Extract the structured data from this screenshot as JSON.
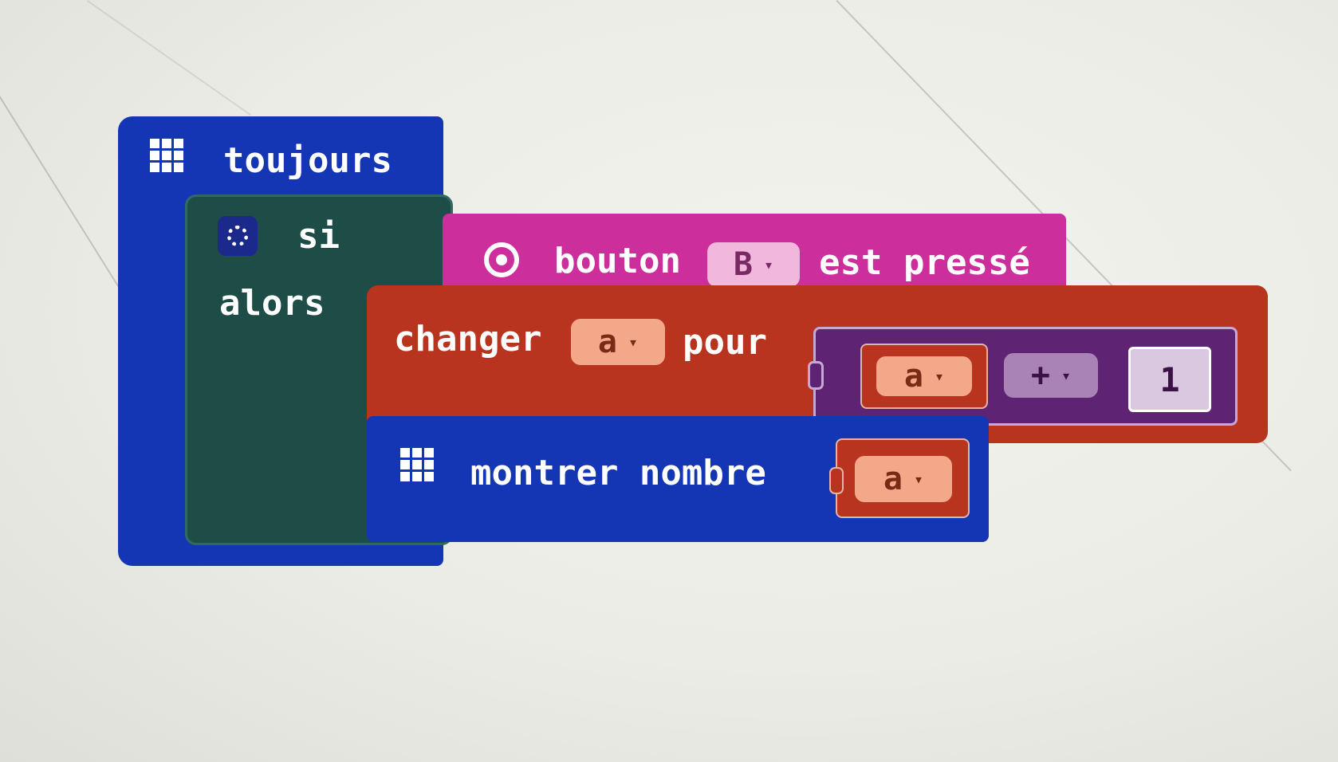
{
  "colors": {
    "basic": "#1436b4",
    "logic": "#1e4d48",
    "input": "#cc2e9c",
    "variables": "#b9341f",
    "math": "#5e2373",
    "dropdown_variable": "#f4a88a",
    "dropdown_input": "#f1b7dd",
    "dropdown_math": "#a982b6"
  },
  "blocks": {
    "forever": {
      "label": "toujours",
      "icon": "grid-icon"
    },
    "if": {
      "label_if": "si",
      "label_then": "alors",
      "icon": "gear-icon"
    },
    "button_pressed": {
      "prefix": "bouton",
      "button_value": "B",
      "suffix": "est pressé",
      "icon": "target-icon"
    },
    "change_var": {
      "prefix": "changer",
      "variable": "a",
      "by_label": "pour"
    },
    "addition": {
      "left_variable": "a",
      "operator": "+",
      "right_value": "1"
    },
    "show_number": {
      "label": "montrer nombre",
      "variable": "a",
      "icon": "grid-icon"
    }
  },
  "dropdown_arrow": "▾"
}
